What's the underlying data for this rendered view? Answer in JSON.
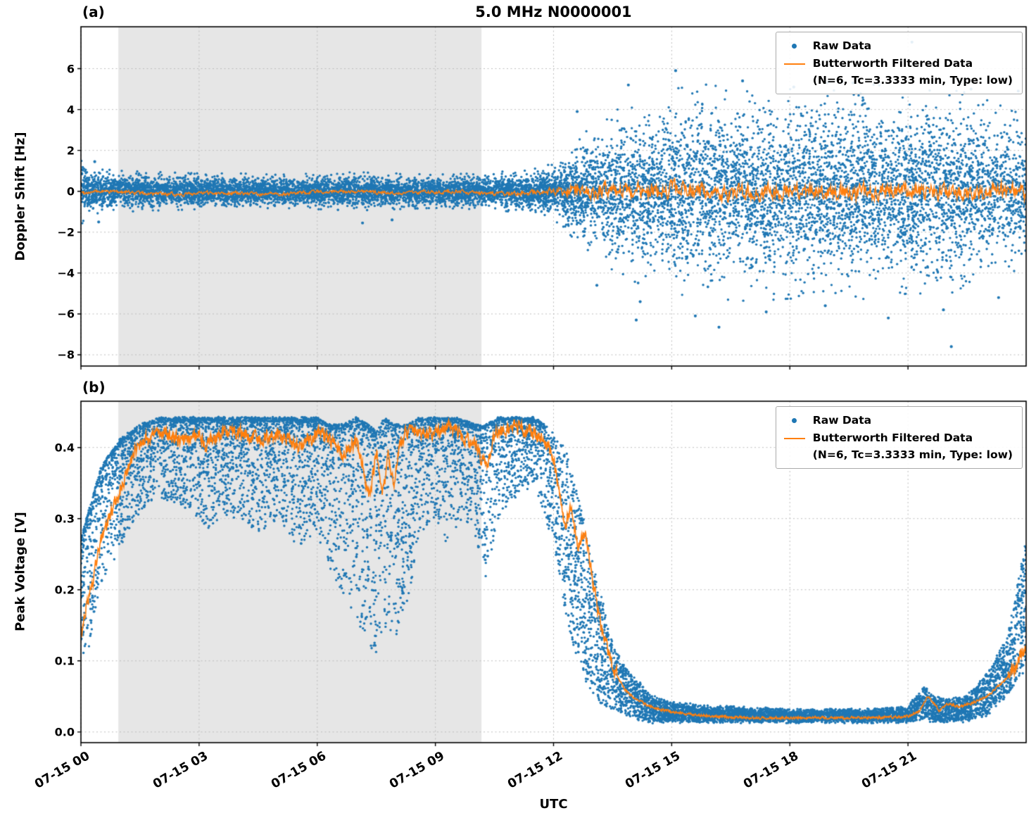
{
  "figure": {
    "title": "5.0 MHz N0000001",
    "xlabel": "UTC",
    "panel_a_label": "(a)",
    "panel_b_label": "(b)"
  },
  "chart_data": [
    {
      "panel": "a",
      "type": "scatter+line",
      "title": "5.0 MHz N0000001",
      "ylabel": "Doppler Shift [Hz]",
      "xlabel": "UTC",
      "xlim_hours": [
        0,
        24
      ],
      "ylim": [
        -8.55,
        8.05
      ],
      "yticks": [
        -8,
        -6,
        -4,
        -2,
        0,
        2,
        4,
        6
      ],
      "ytick_labels": [
        "−8",
        "−6",
        "−4",
        "−2",
        "0",
        "2",
        "4",
        "6"
      ],
      "xticks_hours": [
        0,
        3,
        6,
        9,
        12,
        15,
        18,
        21
      ],
      "xtick_labels": [
        "07-15 00",
        "07-15 03",
        "07-15 06",
        "07-15 09",
        "07-15 12",
        "07-15 15",
        "07-15 18",
        "07-15 21"
      ],
      "shaded_region_hours": [
        0.95,
        10.17
      ],
      "grid": true,
      "legend_position": "upper right",
      "legend": {
        "raw_label": "Raw Data",
        "filtered_label": "Butterworth Filtered Data",
        "filtered_params": "(N=6, Tc=3.3333 min, Type: low)"
      },
      "colors": {
        "raw": "#1f77b4",
        "filtered": "#ff7f0e",
        "shading": "#e6e6e6",
        "grid": "#bdbdbd"
      },
      "raw_scatter_spread": {
        "t_hours": [
          0,
          0.3,
          1,
          2,
          3,
          4,
          5,
          6,
          7,
          8,
          9,
          10,
          10.5,
          11,
          11.3,
          11.6,
          12,
          12.3,
          12.6,
          13,
          13.5,
          14,
          14.5,
          15,
          16,
          17,
          18,
          19,
          20,
          21,
          22,
          23,
          23.5,
          24
        ],
        "halfwidth_hz": [
          1.3,
          0.9,
          0.8,
          0.75,
          0.7,
          0.7,
          0.65,
          0.7,
          0.75,
          0.7,
          0.65,
          0.7,
          0.75,
          0.8,
          0.85,
          0.9,
          1.1,
          1.5,
          2.0,
          2.6,
          3.1,
          3.5,
          3.8,
          4.0,
          4.2,
          4.3,
          4.2,
          4.3,
          4.2,
          4.0,
          4.0,
          3.7,
          3.2,
          3.0
        ]
      },
      "raw_outliers": [
        [
          0.35,
          1.45
        ],
        [
          0.45,
          -1.5
        ],
        [
          7.15,
          -1.55
        ],
        [
          7.9,
          -1.4
        ],
        [
          12.6,
          3.9
        ],
        [
          13.1,
          -4.6
        ],
        [
          13.9,
          5.2
        ],
        [
          14.1,
          -6.3
        ],
        [
          14.2,
          -5.4
        ],
        [
          15.1,
          5.9
        ],
        [
          15.6,
          -6.1
        ],
        [
          16.2,
          -6.65
        ],
        [
          16.8,
          5.4
        ],
        [
          17.4,
          -5.9
        ],
        [
          18.1,
          5.1
        ],
        [
          18.9,
          -5.6
        ],
        [
          19.6,
          5.3
        ],
        [
          20.5,
          -6.2
        ],
        [
          21.1,
          7.3
        ],
        [
          21.9,
          -5.8
        ],
        [
          22.1,
          -7.6
        ],
        [
          22.6,
          5.0
        ],
        [
          23.3,
          -5.2
        ],
        [
          23.8,
          4.9
        ]
      ],
      "filtered_line": {
        "t_hours": [
          0,
          10,
          11.5,
          12.5,
          13,
          24
        ],
        "noise_amp_hz": [
          0.14,
          0.14,
          0.2,
          0.5,
          0.62,
          0.62
        ],
        "bias_hz": [
          -0.1,
          -0.05,
          -0.02,
          0,
          0,
          -0.05
        ]
      }
    },
    {
      "panel": "b",
      "type": "scatter+line",
      "ylabel": "Peak Voltage [V]",
      "xlabel": "UTC",
      "xlim_hours": [
        0,
        24
      ],
      "ylim": [
        -0.015,
        0.465
      ],
      "yticks": [
        0,
        0.1,
        0.2,
        0.3,
        0.4
      ],
      "ytick_labels": [
        "0.0",
        "0.1",
        "0.2",
        "0.3",
        "0.4"
      ],
      "xticks_hours": [
        0,
        3,
        6,
        9,
        12,
        15,
        18,
        21
      ],
      "xtick_labels": [
        "07-15 00",
        "07-15 03",
        "07-15 06",
        "07-15 09",
        "07-15 12",
        "07-15 15",
        "07-15 18",
        "07-15 21"
      ],
      "shaded_region_hours": [
        0.95,
        10.17
      ],
      "grid": true,
      "legend_position": "upper right",
      "legend": {
        "raw_label": "Raw Data",
        "filtered_label": "Butterworth Filtered Data",
        "filtered_params": "(N=6, Tc=3.3333 min, Type: low)"
      },
      "colors": {
        "raw": "#1f77b4",
        "filtered": "#ff7f0e",
        "shading": "#e6e6e6",
        "grid": "#bdbdbd"
      },
      "raw_envelope": {
        "t_hours": [
          0.0,
          0.2,
          0.5,
          1.0,
          1.5,
          2.0,
          2.5,
          3.0,
          3.3,
          3.6,
          4.0,
          4.5,
          5.0,
          5.5,
          6.0,
          6.3,
          6.6,
          7.0,
          7.3,
          7.5,
          7.7,
          8.0,
          8.3,
          8.6,
          9.0,
          9.3,
          9.6,
          10.0,
          10.3,
          10.6,
          11.0,
          11.5,
          11.8,
          12.0,
          12.3,
          12.6,
          13.0,
          13.3,
          13.6,
          14.0,
          14.5,
          15.0,
          16.0,
          18.0,
          20.0,
          21.0,
          21.4,
          21.6,
          22.0,
          22.5,
          23.0,
          23.5,
          24.0
        ],
        "hi_volts": [
          0.27,
          0.31,
          0.37,
          0.41,
          0.43,
          0.44,
          0.44,
          0.44,
          0.44,
          0.44,
          0.44,
          0.44,
          0.44,
          0.44,
          0.44,
          0.43,
          0.43,
          0.44,
          0.43,
          0.42,
          0.44,
          0.43,
          0.43,
          0.44,
          0.44,
          0.44,
          0.44,
          0.43,
          0.43,
          0.44,
          0.44,
          0.44,
          0.43,
          0.42,
          0.4,
          0.34,
          0.24,
          0.17,
          0.11,
          0.08,
          0.05,
          0.04,
          0.035,
          0.03,
          0.03,
          0.035,
          0.065,
          0.05,
          0.045,
          0.05,
          0.08,
          0.13,
          0.27
        ],
        "lo_volts": [
          0.08,
          0.12,
          0.2,
          0.26,
          0.31,
          0.33,
          0.32,
          0.3,
          0.28,
          0.31,
          0.3,
          0.28,
          0.3,
          0.26,
          0.28,
          0.22,
          0.2,
          0.16,
          0.12,
          0.1,
          0.15,
          0.13,
          0.18,
          0.28,
          0.3,
          0.26,
          0.3,
          0.28,
          0.21,
          0.3,
          0.33,
          0.35,
          0.3,
          0.26,
          0.17,
          0.1,
          0.05,
          0.035,
          0.03,
          0.02,
          0.015,
          0.015,
          0.015,
          0.015,
          0.015,
          0.015,
          0.02,
          0.015,
          0.015,
          0.015,
          0.025,
          0.05,
          0.09
        ]
      },
      "filtered_line": {
        "t_hours": [
          0,
          0.15,
          0.3,
          0.5,
          0.8,
          1.0,
          1.3,
          1.6,
          2.0,
          2.5,
          3.0,
          3.2,
          3.5,
          4.0,
          4.5,
          5.0,
          5.5,
          6.0,
          6.3,
          6.6,
          7.0,
          7.2,
          7.35,
          7.5,
          7.65,
          7.8,
          7.95,
          8.1,
          8.3,
          8.6,
          9.0,
          9.3,
          9.6,
          10.0,
          10.3,
          10.5,
          11.0,
          11.5,
          11.8,
          12.0,
          12.15,
          12.3,
          12.45,
          12.6,
          12.8,
          13.0,
          13.2,
          13.5,
          13.8,
          14.0,
          14.5,
          15.0,
          16.0,
          17.0,
          18.0,
          19.0,
          20.0,
          21.0,
          21.3,
          21.5,
          21.8,
          22.0,
          22.3,
          22.6,
          23.0,
          23.4,
          23.7,
          24.0
        ],
        "v_volts": [
          0.14,
          0.18,
          0.21,
          0.27,
          0.31,
          0.34,
          0.39,
          0.41,
          0.42,
          0.41,
          0.42,
          0.4,
          0.42,
          0.42,
          0.41,
          0.42,
          0.4,
          0.42,
          0.41,
          0.39,
          0.41,
          0.36,
          0.33,
          0.4,
          0.33,
          0.39,
          0.34,
          0.41,
          0.42,
          0.42,
          0.42,
          0.43,
          0.42,
          0.4,
          0.37,
          0.42,
          0.43,
          0.42,
          0.41,
          0.38,
          0.34,
          0.29,
          0.32,
          0.26,
          0.28,
          0.21,
          0.15,
          0.09,
          0.06,
          0.05,
          0.035,
          0.028,
          0.022,
          0.02,
          0.02,
          0.02,
          0.02,
          0.022,
          0.03,
          0.05,
          0.03,
          0.04,
          0.035,
          0.04,
          0.05,
          0.07,
          0.09,
          0.12
        ]
      }
    }
  ]
}
